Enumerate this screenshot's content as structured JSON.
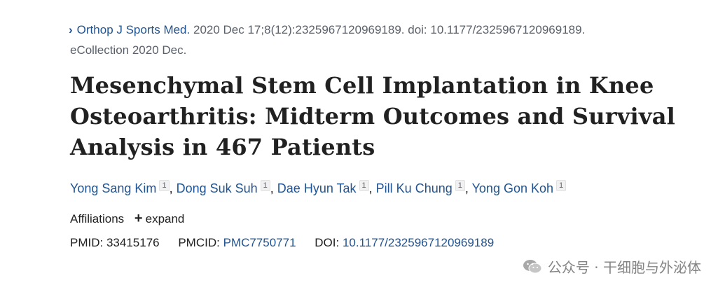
{
  "citation": {
    "journal": "Orthop J Sports Med.",
    "details": "2020 Dec 17;8(12):2325967120969189. doi: 10.1177/2325967120969189.",
    "ecollection": "eCollection 2020 Dec."
  },
  "title": "Mesenchymal Stem Cell Implantation in Knee Osteoarthritis: Midterm Outcomes and Survival Analysis in 467 Patients",
  "authors": [
    {
      "name": "Yong Sang Kim",
      "aff": "1"
    },
    {
      "name": "Dong Suk Suh",
      "aff": "1"
    },
    {
      "name": "Dae Hyun Tak",
      "aff": "1"
    },
    {
      "name": "Pill Ku Chung",
      "aff": "1"
    },
    {
      "name": "Yong Gon Koh",
      "aff": "1"
    }
  ],
  "affiliations": {
    "label": "Affiliations",
    "expand": "expand"
  },
  "identifiers": {
    "pmid_label": "PMID:",
    "pmid": "33415176",
    "pmcid_label": "PMCID:",
    "pmcid": "PMC7750771",
    "doi_label": "DOI:",
    "doi": "10.1177/2325967120969189"
  },
  "watermark": "公众号 · 干细胞与外泌体"
}
